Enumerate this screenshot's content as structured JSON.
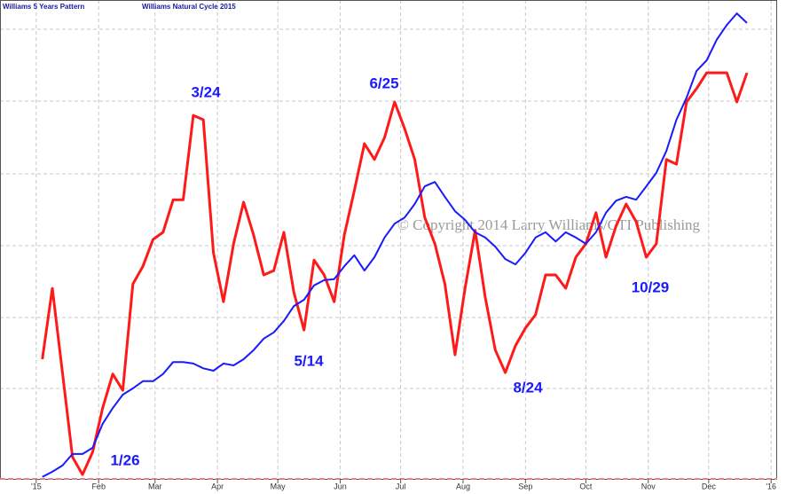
{
  "chart_data": {
    "type": "line",
    "watermark": "© Copyright 2014 Larry Williams/CTI Publishing",
    "x": [
      4,
      9,
      14,
      19,
      24,
      29,
      34,
      39,
      44,
      49,
      54,
      59,
      64,
      69,
      74,
      79,
      84,
      89,
      94,
      99,
      104,
      109,
      114,
      119,
      124,
      129,
      134,
      139,
      144,
      149,
      154,
      159,
      164,
      169,
      174,
      179,
      184,
      189,
      194,
      199,
      204,
      209,
      214,
      219,
      224,
      229,
      234,
      239,
      244,
      249,
      254,
      259,
      264,
      269,
      274,
      279,
      284,
      289,
      294,
      299,
      304,
      309,
      314,
      319,
      324,
      329,
      334,
      339,
      344,
      349,
      354
    ],
    "xlim": [
      -17,
      369
    ],
    "xticks": [
      {
        "value": 1,
        "label": "'15"
      },
      {
        "value": 32,
        "label": "Feb"
      },
      {
        "value": 60,
        "label": "Mar"
      },
      {
        "value": 91,
        "label": "Apr"
      },
      {
        "value": 121,
        "label": "May"
      },
      {
        "value": 152,
        "label": "Jun"
      },
      {
        "value": 182,
        "label": "Jul"
      },
      {
        "value": 213,
        "label": "Aug"
      },
      {
        "value": 244,
        "label": "Sep"
      },
      {
        "value": 274,
        "label": "Oct"
      },
      {
        "value": 305,
        "label": "Nov"
      },
      {
        "value": 335,
        "label": "Dec"
      },
      {
        "value": 366,
        "label": "'16"
      }
    ],
    "ylim": [
      0,
      100
    ],
    "grid": true,
    "series": [
      {
        "name": "Williams 5 Years Pattern",
        "color": "#ff1a1a",
        "values": [
          25,
          39.8,
          22.2,
          4.6,
          0.9,
          5.6,
          14.8,
          21.9,
          18.5,
          40.7,
          44.4,
          50,
          51.5,
          58.3,
          58.3,
          75.9,
          75,
          47.2,
          37,
          49.1,
          57.8,
          50.9,
          42.6,
          43.5,
          51.5,
          38.9,
          31.1,
          45.7,
          42.6,
          37,
          50.9,
          60.2,
          70,
          66.7,
          71.3,
          78.7,
          73.1,
          66.7,
          54.6,
          49.1,
          40.7,
          25.9,
          39.8,
          51.9,
          38,
          26.9,
          22.2,
          27.8,
          31.5,
          34.3,
          42.6,
          42.6,
          39.8,
          46.3,
          49.1,
          55.6,
          46.3,
          52.8,
          57.4,
          53.7,
          46.3,
          49.1,
          66.7,
          65.7,
          78.7,
          81.5,
          84.8,
          84.8,
          84.8,
          78.7,
          84.8
        ]
      },
      {
        "name": "Williams Natural Cycle 2015",
        "color": "#1a1aff",
        "values": [
          0.4,
          1.5,
          2.8,
          5.2,
          5.2,
          6.5,
          11.5,
          14.8,
          17.6,
          18.9,
          20.4,
          20.4,
          21.9,
          24.4,
          24.4,
          24.1,
          23.1,
          22.6,
          24.1,
          23.7,
          25,
          26.9,
          29.3,
          30.6,
          33,
          36.1,
          37.4,
          40.4,
          41.5,
          41.7,
          44.4,
          46.7,
          43.5,
          46.3,
          50.4,
          53.3,
          54.6,
          57.4,
          61.1,
          62,
          58.9,
          55.9,
          54.1,
          51.5,
          50.4,
          48.5,
          45.9,
          44.8,
          47.2,
          50.4,
          51.5,
          49.6,
          51.5,
          50.4,
          49.1,
          51.5,
          55.6,
          58.1,
          58.9,
          58.3,
          61.1,
          63.9,
          68.5,
          75,
          79.6,
          85.2,
          87.4,
          91.7,
          94.8,
          97.2,
          95.2
        ]
      }
    ],
    "annotations": [
      "1/26",
      "3/24",
      "5/14",
      "6/25",
      "8/24",
      "10/29"
    ]
  }
}
